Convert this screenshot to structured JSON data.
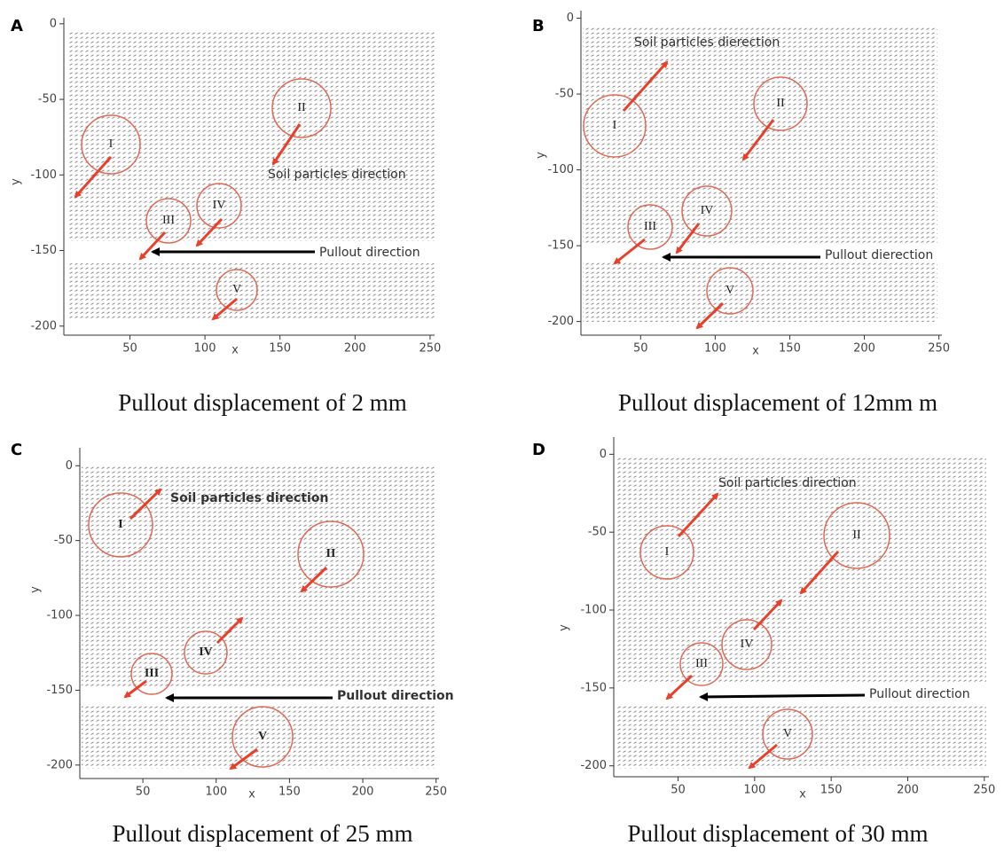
{
  "chart_data": [
    {
      "type": "vector-field",
      "panel": "A",
      "caption": "Pullout displacement of 2 mm",
      "xlabel": "x",
      "ylabel": "y",
      "xlim": [
        6,
        253
      ],
      "ylim": [
        -206,
        4
      ],
      "xticks": [
        50,
        100,
        150,
        200,
        250
      ],
      "yticks": [
        0,
        -50,
        -100,
        -150,
        -200
      ],
      "circles": [
        "I",
        "II",
        "III",
        "IV",
        "V"
      ],
      "soil_label": "Soil particles direction",
      "pullout_label": "Pullout direction"
    },
    {
      "type": "vector-field",
      "panel": "B",
      "caption": "Pullout displacement of 12mm m",
      "xlabel": "x",
      "ylabel": "y",
      "xlim": [
        10,
        252
      ],
      "ylim": [
        -209,
        5
      ],
      "xticks": [
        50,
        100,
        150,
        200,
        250
      ],
      "yticks": [
        0,
        -50,
        -100,
        -150,
        -200
      ],
      "circles": [
        "I",
        "II",
        "III",
        "IV",
        "V"
      ],
      "soil_label": "Soil particles dierection",
      "pullout_label": "Pullout dierection"
    },
    {
      "type": "vector-field",
      "panel": "C",
      "caption": "Pullout displacement of 25 mm",
      "xlabel": "x",
      "ylabel": "y",
      "xlim": [
        7,
        252
      ],
      "ylim": [
        -209,
        12
      ],
      "xticks": [
        50,
        100,
        150,
        200,
        250
      ],
      "yticks": [
        0,
        -50,
        -100,
        -150,
        -200
      ],
      "circles": [
        "I",
        "II",
        "III",
        "IV",
        "V"
      ],
      "soil_label": "Soil particles direction",
      "pullout_label": "Pullout direction"
    },
    {
      "type": "vector-field",
      "panel": "D",
      "caption": "Pullout displacement of 30 mm",
      "xlabel": "x",
      "ylabel": "y",
      "xlim": [
        8,
        253
      ],
      "ylim": [
        -207,
        11
      ],
      "xticks": [
        50,
        100,
        150,
        200,
        250
      ],
      "yticks": [
        0,
        -50,
        -100,
        -150,
        -200
      ],
      "circles": [
        "I",
        "II",
        "III",
        "IV",
        "V"
      ],
      "soil_label": "Soil particles direction",
      "pullout_label": "Pullout direction"
    }
  ]
}
